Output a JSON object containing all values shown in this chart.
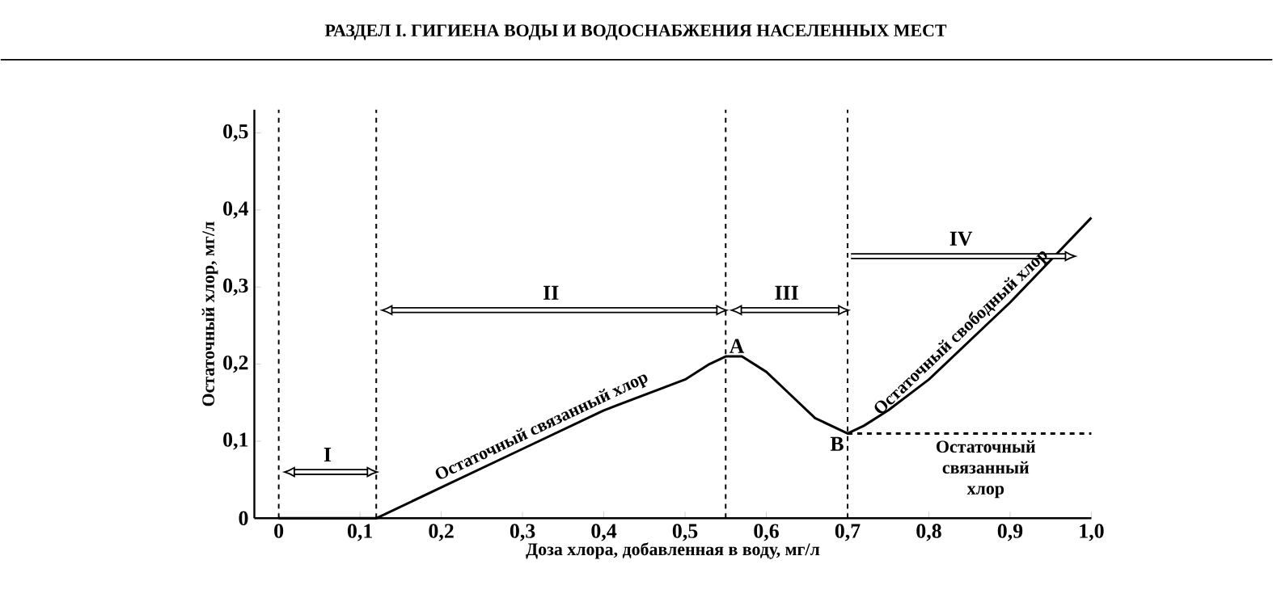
{
  "chart_data": {
    "type": "line",
    "title": "РАЗДЕЛ I. ГИГИЕНА ВОДЫ И ВОДОСНАБЖЕНИЯ НАСЕЛЕННЫХ МЕСТ",
    "xlabel": "Доза хлора, добавленная в воду, мг/л",
    "ylabel": "Остаточный хлор, мг/л",
    "series": [
      {
        "color": "#000000",
        "line_style": "solid",
        "x": [
          0,
          0.12,
          0.2,
          0.3,
          0.4,
          0.5,
          0.53,
          0.55,
          0.57,
          0.6,
          0.63,
          0.66,
          0.68,
          0.7,
          0.72,
          0.75,
          0.8,
          0.9,
          1.0
        ],
        "values": [
          0,
          0,
          0.04,
          0.09,
          0.14,
          0.18,
          0.2,
          0.21,
          0.21,
          0.19,
          0.16,
          0.13,
          0.12,
          0.11,
          0.12,
          0.14,
          0.18,
          0.28,
          0.39
        ]
      },
      {
        "color": "#000000",
        "line_style": "dashed",
        "x": [
          0.7,
          1.0
        ],
        "values": [
          0.11,
          0.11
        ]
      }
    ],
    "xlim": [
      -0.03,
      1.0
    ],
    "ylim": [
      0,
      0.53
    ],
    "xticks": [
      {
        "value": 0,
        "label": "0"
      },
      {
        "value": 0.1,
        "label": "0,1"
      },
      {
        "value": 0.2,
        "label": "0,2"
      },
      {
        "value": 0.3,
        "label": "0,3"
      },
      {
        "value": 0.4,
        "label": "0,4"
      },
      {
        "value": 0.5,
        "label": "0,5"
      },
      {
        "value": 0.6,
        "label": "0,6"
      },
      {
        "value": 0.7,
        "label": "0,7"
      },
      {
        "value": 0.8,
        "label": "0,8"
      },
      {
        "value": 0.9,
        "label": "0,9"
      },
      {
        "value": 1.0,
        "label": "1,0"
      }
    ],
    "yticks": [
      {
        "value": 0,
        "label": "0"
      },
      {
        "value": 0.1,
        "label": "0,1"
      },
      {
        "value": 0.2,
        "label": "0,2"
      },
      {
        "value": 0.3,
        "label": "0,3"
      },
      {
        "value": 0.4,
        "label": "0,4"
      },
      {
        "value": 0.5,
        "label": "0,5"
      }
    ],
    "ref_lines": [
      {
        "axis": "x",
        "value": 0,
        "line_style": "dashed"
      },
      {
        "axis": "x",
        "value": 0.12,
        "line_style": "dashed"
      },
      {
        "axis": "x",
        "value": 0.55,
        "line_style": "dashed"
      },
      {
        "axis": "x",
        "value": 0.7,
        "line_style": "dashed"
      }
    ],
    "annotations": [
      "I",
      "II",
      "III",
      "IV",
      {
        "text": "A",
        "x": 0.55,
        "y": 0.21
      },
      {
        "text": "B",
        "x": 0.7,
        "y": 0.11
      },
      {
        "text": "Остаточный связанный хлор",
        "x": 0.33,
        "y": 0.105
      },
      {
        "text": "Остаточный свободный хлор",
        "x": 0.85,
        "y": 0.23
      },
      {
        "text": "Остаточный связанный хлор",
        "x": 0.87,
        "y": 0.11
      }
    ],
    "marker": "none"
  }
}
